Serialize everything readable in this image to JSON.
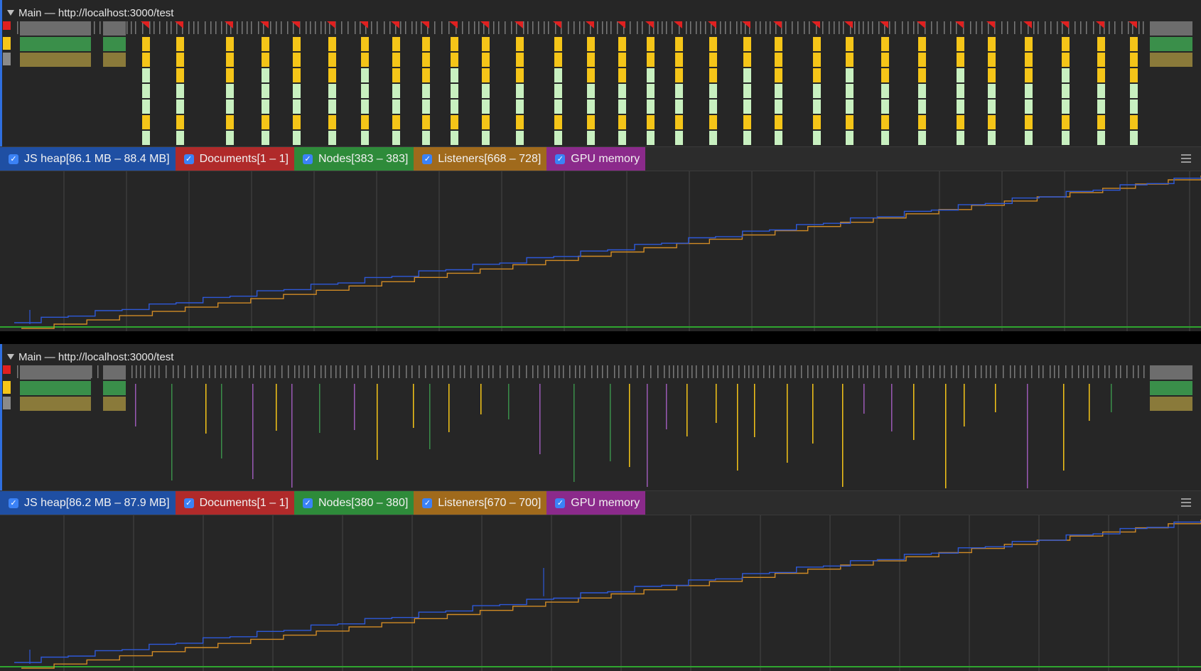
{
  "panels": [
    {
      "track_title": "Main — http://localhost:3000/test",
      "legend": [
        {
          "label": "JS heap[86.1 MB – 88.4 MB]",
          "color": "#1f4fa3"
        },
        {
          "label": "Documents[1 – 1]",
          "color": "#b02a2a"
        },
        {
          "label": "Nodes[383 – 383]",
          "color": "#2e8b3a"
        },
        {
          "label": "Listeners[668 – 728]",
          "color": "#a06a1c"
        },
        {
          "label": "GPU memory",
          "color": "#8b2a8b"
        }
      ]
    },
    {
      "track_title": "Main — http://localhost:3000/test",
      "legend": [
        {
          "label": "JS heap[86.2 MB – 87.9 MB]",
          "color": "#1f4fa3"
        },
        {
          "label": "Documents[1 – 1]",
          "color": "#b02a2a"
        },
        {
          "label": "Nodes[380 – 380]",
          "color": "#2e8b3a"
        },
        {
          "label": "Listeners[670 – 700]",
          "color": "#a06a1c"
        },
        {
          "label": "GPU memory",
          "color": "#8b2a8b"
        }
      ]
    }
  ],
  "colors": {
    "js_heap": "#2e59d9",
    "listeners": "#d18b25",
    "nodes": "#2fa52f",
    "script": "#f5c518",
    "render": "#c8f0c0",
    "idle_tick": "#7a7a7a",
    "gridline": "#454545",
    "task_marker": "#e02020"
  },
  "icons": {
    "expand": "triangle-down-icon",
    "checkbox": "checkbox-checked-icon",
    "menu": "hamburger-menu-icon"
  }
}
